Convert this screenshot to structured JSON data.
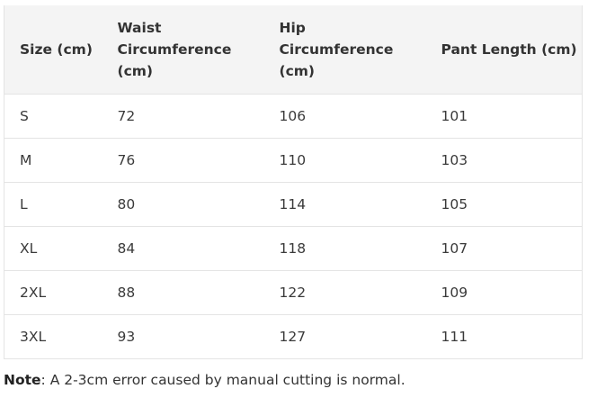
{
  "table": {
    "headers": [
      "Size (cm)",
      "Waist Circumference (cm)",
      "Hip Circumference (cm)",
      "Pant Length (cm)"
    ],
    "rows": [
      [
        "S",
        "72",
        "106",
        "101"
      ],
      [
        "M",
        "76",
        "110",
        "103"
      ],
      [
        "L",
        "80",
        "114",
        "105"
      ],
      [
        "XL",
        "84",
        "118",
        "107"
      ],
      [
        "2XL",
        "88",
        "122",
        "109"
      ],
      [
        "3XL",
        "93",
        "127",
        "111"
      ]
    ]
  },
  "note": {
    "label": "Note",
    "text": ": A 2-3cm error caused by manual cutting is normal."
  }
}
